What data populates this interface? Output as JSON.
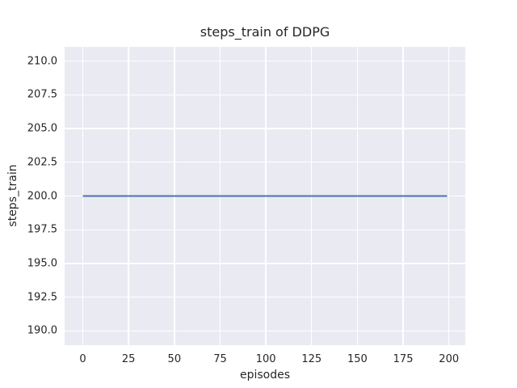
{
  "chart_data": {
    "type": "line",
    "title": "steps_train of DDPG",
    "xlabel": "episodes",
    "ylabel": "steps_train",
    "plot_background": "#eaeaf2",
    "grid_color": "#ffffff",
    "text_color": "#262626",
    "grid": true,
    "legend": false,
    "xlim": [
      -9.95,
      208.95
    ],
    "ylim": [
      188.95,
      211.05
    ],
    "x_ticks": [
      {
        "value": 0,
        "label": "0"
      },
      {
        "value": 25,
        "label": "25"
      },
      {
        "value": 50,
        "label": "50"
      },
      {
        "value": 75,
        "label": "75"
      },
      {
        "value": 100,
        "label": "100"
      },
      {
        "value": 125,
        "label": "125"
      },
      {
        "value": 150,
        "label": "150"
      },
      {
        "value": 175,
        "label": "175"
      },
      {
        "value": 200,
        "label": "200"
      }
    ],
    "y_ticks": [
      {
        "value": 190.0,
        "label": "190.0"
      },
      {
        "value": 192.5,
        "label": "192.5"
      },
      {
        "value": 195.0,
        "label": "195.0"
      },
      {
        "value": 197.5,
        "label": "197.5"
      },
      {
        "value": 200.0,
        "label": "200.0"
      },
      {
        "value": 202.5,
        "label": "202.5"
      },
      {
        "value": 205.0,
        "label": "205.0"
      },
      {
        "value": 207.5,
        "label": "207.5"
      },
      {
        "value": 210.0,
        "label": "210.0"
      }
    ],
    "series": [
      {
        "name": "steps_train",
        "color": "#4c72b0",
        "line_width": 2,
        "x": [
          0,
          199
        ],
        "y": [
          200,
          200
        ]
      }
    ]
  }
}
